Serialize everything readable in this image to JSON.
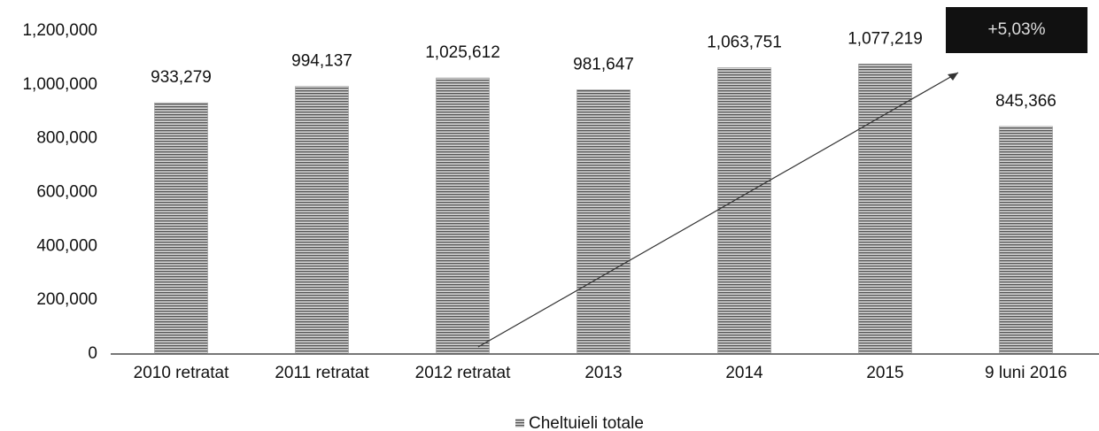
{
  "chart_data": {
    "type": "bar",
    "categories": [
      "2010 retratat",
      "2011 retratat",
      "2012 retratat",
      "2013",
      "2014",
      "2015",
      "9 luni 2016"
    ],
    "values": [
      933279,
      994137,
      1025612,
      981647,
      1063751,
      1077219,
      845366
    ],
    "value_labels": [
      "933,279",
      "994,137",
      "1,025,612",
      "981,647",
      "1,063,751",
      "1,077,219",
      "845,366"
    ],
    "series_name": "Cheltuieli totale",
    "color": "#8a8a8a",
    "annotation": "+5,03%",
    "ylim": [
      0,
      1200000
    ],
    "yticks": [
      0,
      {
        "value": 200000,
        "label": "200,000"
      },
      {
        "value": 400000,
        "label": "400,000"
      },
      {
        "value": 600000,
        "label": "600,000"
      },
      {
        "value": 800000,
        "label": "800,000"
      },
      {
        "value": 1000000,
        "label": "1,000,000"
      },
      {
        "value": 1200000,
        "label": "1,200,000"
      }
    ],
    "grid": false
  }
}
